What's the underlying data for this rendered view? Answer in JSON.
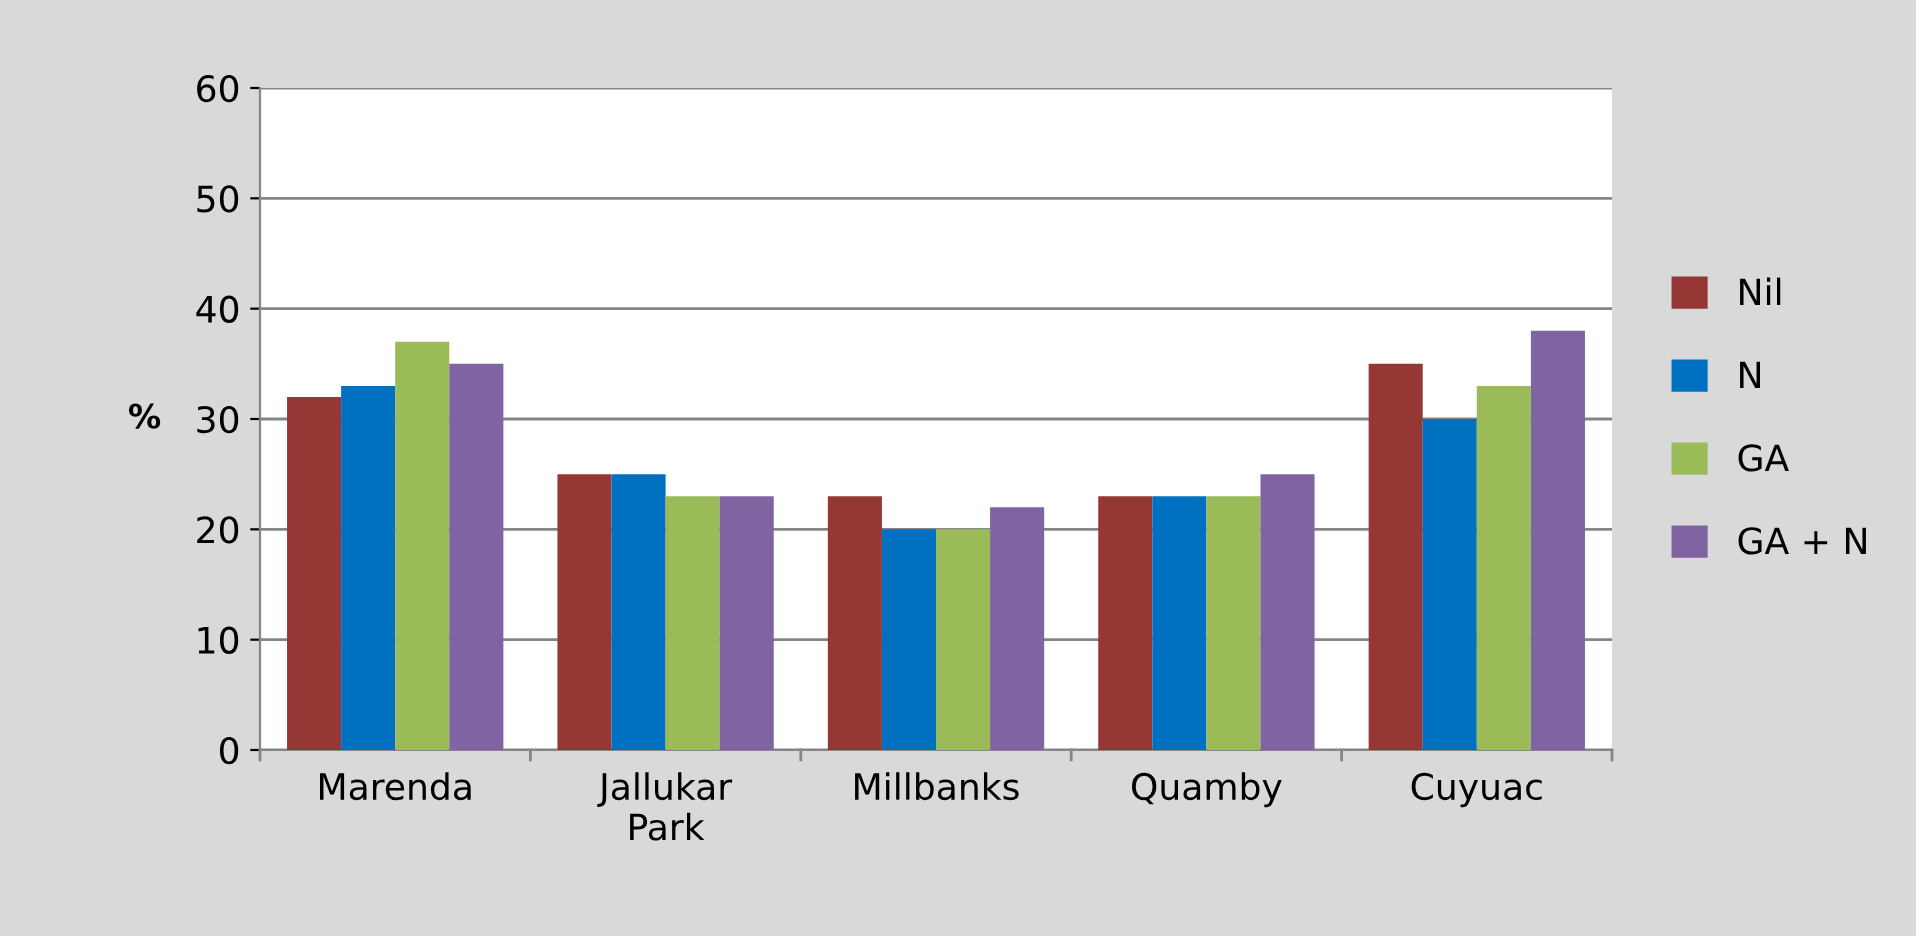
{
  "chart_data": {
    "type": "bar",
    "ylabel": "%",
    "categories": [
      "Marenda",
      "Jallukar Park",
      "Millbanks",
      "Quamby",
      "Cuyuac"
    ],
    "series": [
      {
        "name": "Nil",
        "color": "#953735",
        "values": [
          32,
          25,
          23,
          23,
          35
        ]
      },
      {
        "name": "N",
        "color": "#0070c0",
        "values": [
          33,
          25,
          20,
          23,
          30
        ]
      },
      {
        "name": "GA",
        "color": "#9bbb59",
        "values": [
          37,
          23,
          20,
          23,
          33
        ]
      },
      {
        "name": "GA + N",
        "color": "#8064a2",
        "values": [
          35,
          23,
          22,
          25,
          38
        ]
      }
    ],
    "ylim": [
      0,
      60
    ],
    "yticks": [
      0,
      10,
      20,
      30,
      40,
      50,
      60
    ],
    "grid": "y",
    "legend": "right"
  }
}
